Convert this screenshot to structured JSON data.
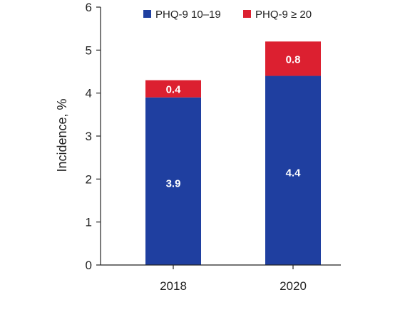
{
  "chart_data": {
    "type": "bar",
    "stacked": true,
    "categories": [
      "2018",
      "2020"
    ],
    "series": [
      {
        "name": "PHQ-9 10–19",
        "values": [
          3.9,
          4.4
        ],
        "color": "#1f3fa0"
      },
      {
        "name": "PHQ-9 ≥ 20",
        "values": [
          0.4,
          0.8
        ],
        "color": "#dc2030"
      }
    ],
    "data_labels": [
      [
        "3.9",
        "4.4"
      ],
      [
        "0.4",
        "0.8"
      ]
    ],
    "ylabel": "Incidence, %",
    "xlabel": "",
    "title": "",
    "ylim": [
      0,
      6
    ],
    "yticks": [
      "0",
      "1",
      "2",
      "3",
      "4",
      "5",
      "6"
    ],
    "grid": false,
    "legend_position": "top-right"
  }
}
